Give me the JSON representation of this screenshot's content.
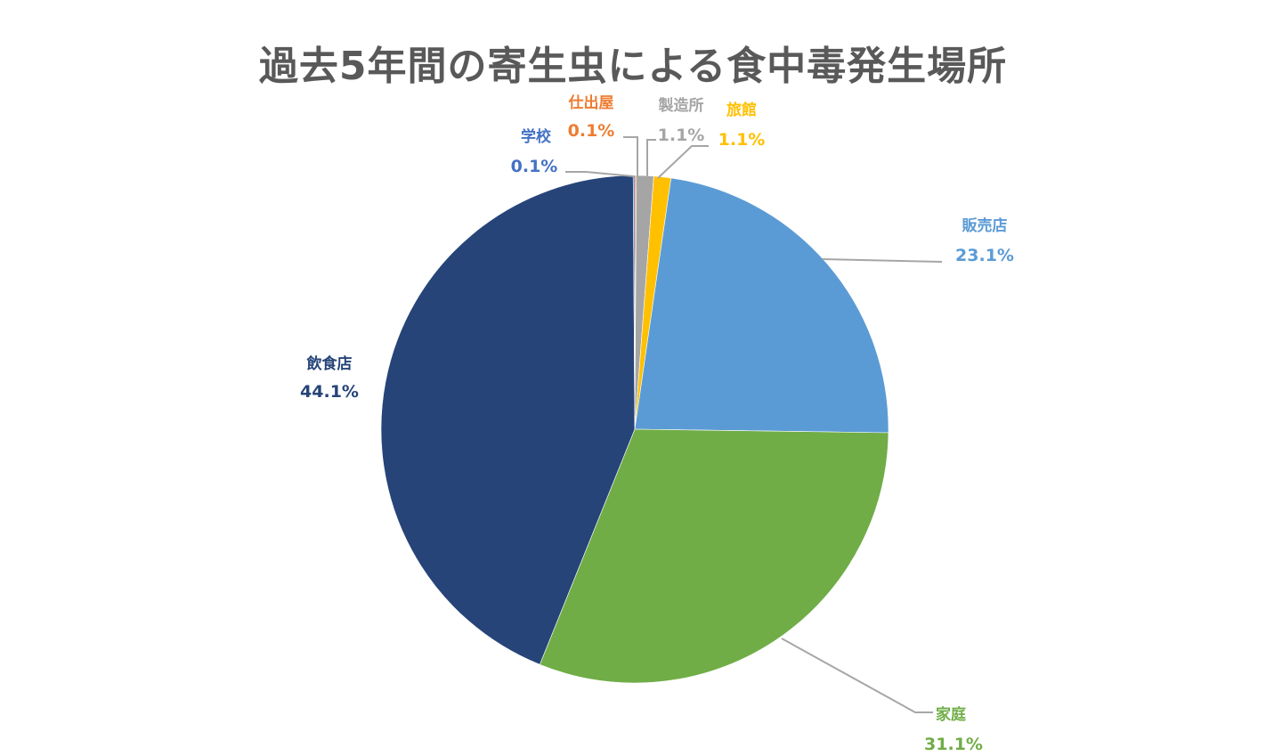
{
  "chart_data": {
    "type": "pie",
    "title": "過去5年間の寄生虫による食中毒発生場所",
    "slices": [
      {
        "name": "仕出屋",
        "value": 0.1,
        "label": "0.1%",
        "color": "#ED7D31",
        "label_color": "#ED7D31"
      },
      {
        "name": "製造所",
        "value": 1.1,
        "label": "1.1%",
        "color": "#A5A5A5",
        "label_color": "#A5A5A5"
      },
      {
        "name": "旅館",
        "value": 1.1,
        "label": "1.1%",
        "color": "#FFC000",
        "label_color": "#FFC000"
      },
      {
        "name": "販売店",
        "value": 23.1,
        "label": "23.1%",
        "color": "#5B9BD5",
        "label_color": "#5B9BD5"
      },
      {
        "name": "家庭",
        "value": 31.1,
        "label": "31.1%",
        "color": "#70AD47",
        "label_color": "#70AD47"
      },
      {
        "name": "飲食店",
        "value": 44.1,
        "label": "44.1%",
        "color": "#264478",
        "label_color": "#264478"
      },
      {
        "name": "学校",
        "value": 0.1,
        "label": "0.1%",
        "color": "#4472C4",
        "label_color": "#4472C4"
      }
    ]
  }
}
